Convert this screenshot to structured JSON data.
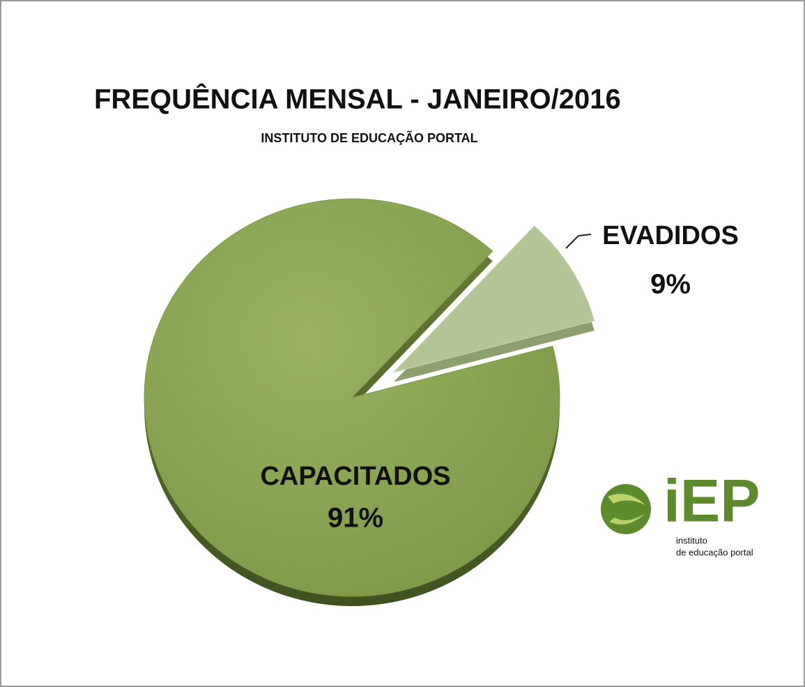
{
  "chart_data": {
    "type": "pie",
    "title": "FREQUÊNCIA MENSAL - JANEIRO/2016",
    "subtitle": "INSTITUTO DE EDUCAÇÃO PORTAL",
    "categories": [
      "CAPACITADOS",
      "EVADIDOS"
    ],
    "values": [
      91,
      9
    ],
    "value_labels": [
      "91%",
      "9%"
    ],
    "colors": [
      "#8aa552",
      "#b3c596"
    ]
  },
  "logo": {
    "text": "iEP",
    "caption": [
      "instituto",
      "de educação portal"
    ]
  }
}
